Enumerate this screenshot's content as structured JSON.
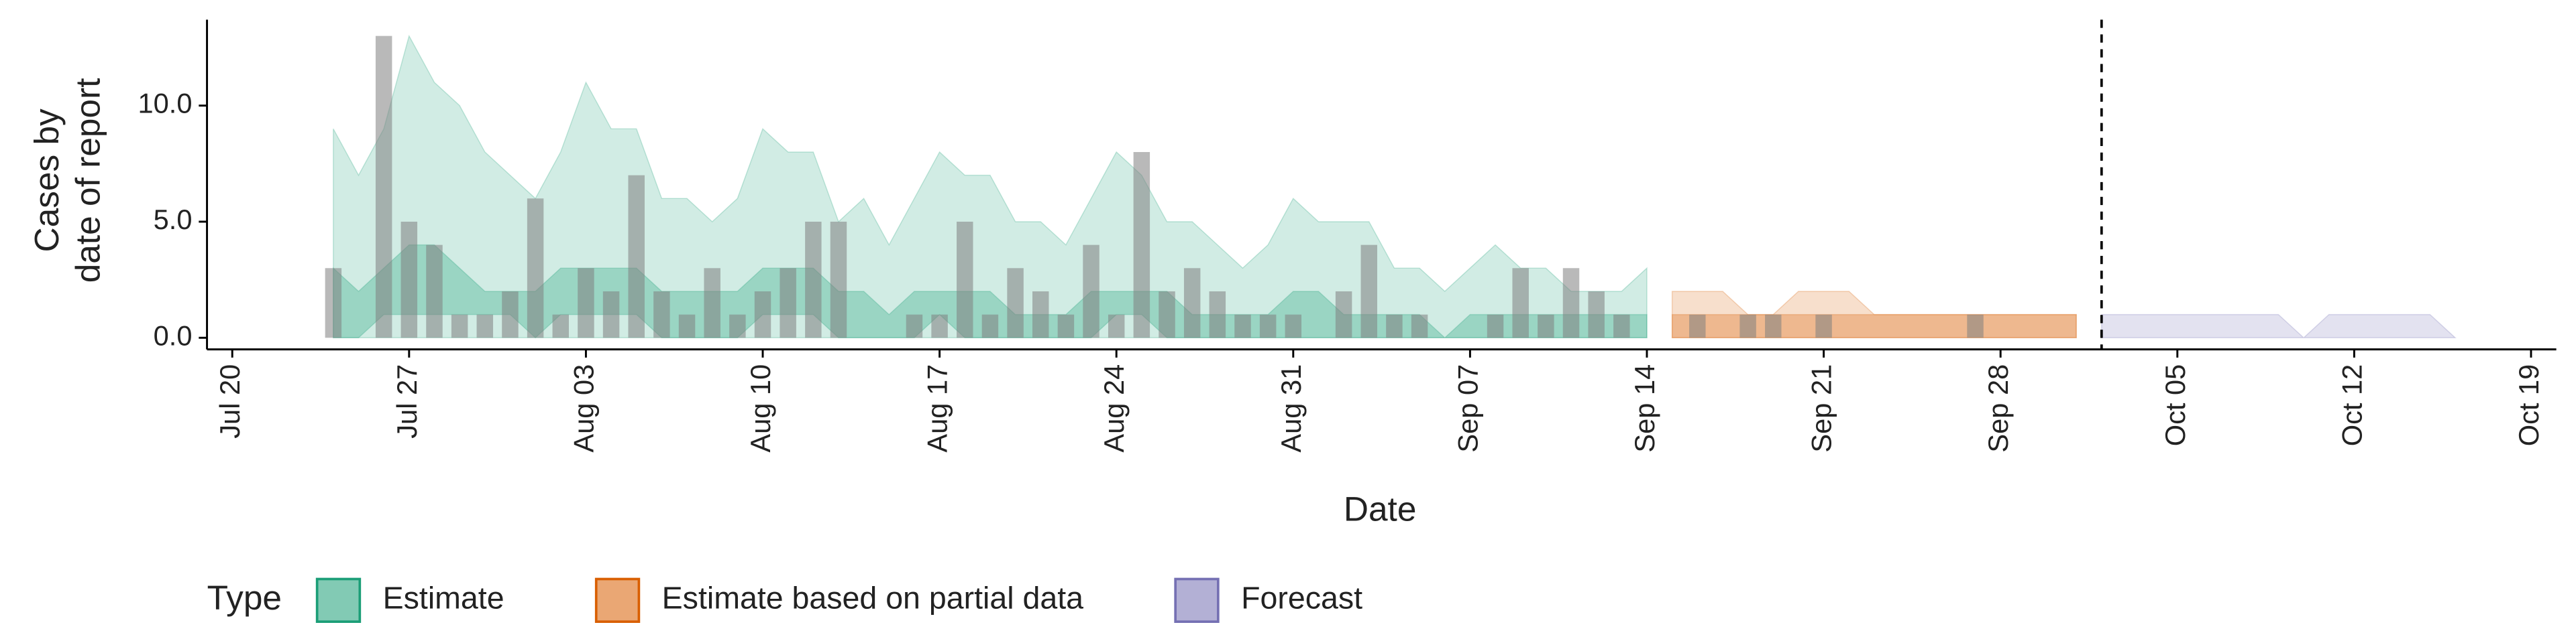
{
  "chart_data": {
    "type": "bar",
    "xlabel": "Date",
    "ylabel": [
      "Cases by",
      "date of report"
    ],
    "legend_title": "Type",
    "bar_color": "#808080",
    "x": [
      "Jul 24",
      "Jul 25",
      "Jul 26",
      "Jul 27",
      "Jul 28",
      "Jul 29",
      "Jul 30",
      "Jul 31",
      "Aug 01",
      "Aug 02",
      "Aug 03",
      "Aug 04",
      "Aug 05",
      "Aug 06",
      "Aug 07",
      "Aug 08",
      "Aug 09",
      "Aug 10",
      "Aug 11",
      "Aug 12",
      "Aug 13",
      "Aug 14",
      "Aug 15",
      "Aug 16",
      "Aug 17",
      "Aug 18",
      "Aug 19",
      "Aug 20",
      "Aug 21",
      "Aug 22",
      "Aug 23",
      "Aug 24",
      "Aug 25",
      "Aug 26",
      "Aug 27",
      "Aug 28",
      "Aug 29",
      "Aug 30",
      "Aug 31",
      "Sep 01",
      "Sep 02",
      "Sep 03",
      "Sep 04",
      "Sep 05",
      "Sep 06",
      "Sep 07",
      "Sep 08",
      "Sep 09",
      "Sep 10",
      "Sep 11",
      "Sep 12",
      "Sep 13",
      "Sep 14",
      "Sep 15",
      "Sep 16",
      "Sep 17",
      "Sep 18",
      "Sep 19",
      "Sep 20",
      "Sep 21",
      "Sep 22",
      "Sep 23",
      "Sep 24",
      "Sep 25",
      "Sep 26",
      "Sep 27"
    ],
    "values": [
      3,
      0,
      13,
      5,
      4,
      1,
      1,
      2,
      6,
      1,
      3,
      2,
      7,
      2,
      1,
      3,
      1,
      2,
      3,
      5,
      5,
      0,
      0,
      1,
      1,
      5,
      1,
      3,
      2,
      1,
      4,
      1,
      8,
      2,
      3,
      2,
      1,
      1,
      1,
      0,
      2,
      4,
      1,
      1,
      0,
      0,
      1,
      3,
      1,
      3,
      2,
      1,
      0,
      0,
      1,
      0,
      1,
      1,
      0,
      1,
      0,
      0,
      0,
      0,
      0,
      1
    ],
    "series": [
      {
        "name": "Estimate",
        "color": "#1b9e77",
        "x": [
          "Jul 24",
          "Jul 25",
          "Jul 26",
          "Jul 27",
          "Jul 28",
          "Jul 29",
          "Jul 30",
          "Jul 31",
          "Aug 01",
          "Aug 02",
          "Aug 03",
          "Aug 04",
          "Aug 05",
          "Aug 06",
          "Aug 07",
          "Aug 08",
          "Aug 09",
          "Aug 10",
          "Aug 11",
          "Aug 12",
          "Aug 13",
          "Aug 14",
          "Aug 15",
          "Aug 16",
          "Aug 17",
          "Aug 18",
          "Aug 19",
          "Aug 20",
          "Aug 21",
          "Aug 22",
          "Aug 23",
          "Aug 24",
          "Aug 25",
          "Aug 26",
          "Aug 27",
          "Aug 28",
          "Aug 29",
          "Aug 30",
          "Aug 31",
          "Sep 01",
          "Sep 02",
          "Sep 03",
          "Sep 04",
          "Sep 05",
          "Sep 06",
          "Sep 07",
          "Sep 08",
          "Sep 09",
          "Sep 10",
          "Sep 11",
          "Sep 12",
          "Sep 13",
          "Sep 14"
        ],
        "outer_lower": [
          0,
          0,
          0,
          0,
          0,
          0,
          0,
          0,
          0,
          0,
          0,
          0,
          0,
          0,
          0,
          0,
          0,
          0,
          0,
          0,
          0,
          0,
          0,
          0,
          0,
          0,
          0,
          0,
          0,
          0,
          0,
          0,
          0,
          0,
          0,
          0,
          0,
          0,
          0,
          0,
          0,
          0,
          0,
          0,
          0,
          0,
          0,
          0,
          0,
          0,
          0,
          0,
          0
        ],
        "outer_upper": [
          9,
          7,
          9,
          13,
          11,
          10,
          8,
          7,
          6,
          8,
          11,
          9,
          9,
          6,
          6,
          5,
          6,
          9,
          8,
          8,
          5,
          6,
          4,
          6,
          8,
          7,
          7,
          5,
          5,
          4,
          6,
          8,
          7,
          5,
          5,
          4,
          3,
          4,
          6,
          5,
          5,
          5,
          3,
          3,
          2,
          3,
          4,
          3,
          3,
          2,
          2,
          2,
          3
        ],
        "inner_lower": [
          0,
          0,
          1,
          1,
          1,
          1,
          1,
          1,
          0,
          1,
          1,
          1,
          1,
          0,
          0,
          0,
          0,
          1,
          1,
          1,
          0,
          0,
          0,
          0,
          1,
          0,
          0,
          0,
          0,
          0,
          0,
          1,
          1,
          0,
          0,
          0,
          0,
          0,
          0,
          0,
          0,
          0,
          0,
          0,
          0,
          0,
          0,
          0,
          0,
          0,
          0,
          0,
          0
        ],
        "inner_upper": [
          3,
          2,
          3,
          4,
          4,
          3,
          2,
          2,
          2,
          3,
          3,
          3,
          3,
          2,
          2,
          2,
          2,
          3,
          3,
          3,
          2,
          2,
          1,
          2,
          2,
          2,
          2,
          1,
          1,
          1,
          2,
          2,
          2,
          2,
          1,
          1,
          1,
          1,
          2,
          2,
          1,
          1,
          1,
          1,
          0,
          1,
          1,
          1,
          1,
          1,
          1,
          1,
          1
        ]
      },
      {
        "name": "Estimate based on partial data",
        "color": "#d95f02",
        "x": [
          "Sep 15",
          "Sep 16",
          "Sep 17",
          "Sep 18",
          "Sep 19",
          "Sep 20",
          "Sep 21",
          "Sep 22",
          "Sep 23",
          "Sep 24",
          "Sep 25",
          "Sep 26",
          "Sep 27",
          "Sep 28",
          "Sep 29",
          "Sep 30",
          "Oct 01"
        ],
        "outer_lower": [
          0,
          0,
          0,
          0,
          0,
          0,
          0,
          0,
          0,
          0,
          0,
          0,
          0,
          0,
          0,
          0,
          0
        ],
        "outer_upper": [
          2,
          2,
          2,
          1,
          1,
          2,
          2,
          2,
          1,
          1,
          1,
          1,
          1,
          1,
          1,
          1,
          1
        ],
        "inner_lower": [
          0,
          0,
          0,
          0,
          0,
          0,
          0,
          0,
          0,
          0,
          0,
          0,
          0,
          0,
          0,
          0,
          0
        ],
        "inner_upper": [
          1,
          1,
          1,
          1,
          1,
          1,
          1,
          1,
          1,
          1,
          1,
          1,
          1,
          1,
          1,
          1,
          1
        ]
      },
      {
        "name": "Forecast",
        "color": "#7570b3",
        "x": [
          "Oct 02",
          "Oct 03",
          "Oct 04",
          "Oct 05",
          "Oct 06",
          "Oct 07",
          "Oct 08",
          "Oct 09",
          "Oct 10",
          "Oct 11",
          "Oct 12",
          "Oct 13",
          "Oct 14",
          "Oct 15",
          "Oct 16"
        ],
        "outer_lower": [
          0,
          0,
          0,
          0,
          0,
          0,
          0,
          0,
          0,
          0,
          0,
          0,
          0,
          0,
          0
        ],
        "outer_upper": [
          1,
          1,
          1,
          1,
          1,
          1,
          1,
          1,
          0,
          1,
          1,
          1,
          1,
          1,
          0
        ]
      }
    ],
    "vline": "Oct 02",
    "xlim": [
      "Jul 19",
      "Oct 20"
    ],
    "xticks": [
      "Jul 20",
      "Jul 27",
      "Aug 03",
      "Aug 10",
      "Aug 17",
      "Aug 24",
      "Aug 31",
      "Sep 07",
      "Sep 14",
      "Sep 21",
      "Sep 28",
      "Oct 05",
      "Oct 12",
      "Oct 19"
    ],
    "ylim": [
      -0.5,
      13.7
    ],
    "yticks": [
      {
        "value": 0,
        "label": "0.0"
      },
      {
        "value": 5,
        "label": "5.0"
      },
      {
        "value": 10,
        "label": "10.0"
      }
    ]
  }
}
